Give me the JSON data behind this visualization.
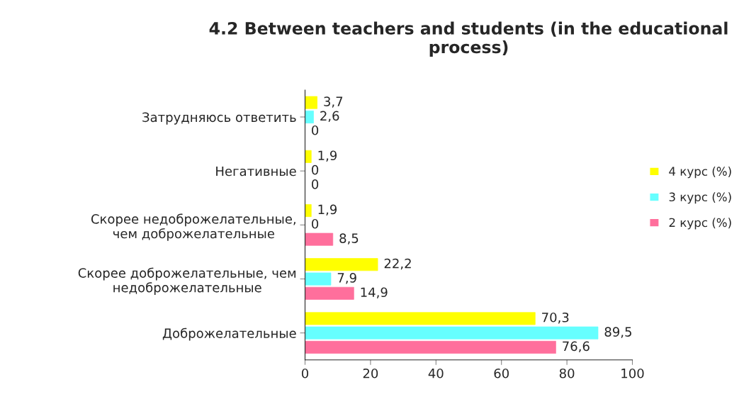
{
  "chart_data": {
    "type": "bar",
    "orientation": "horizontal",
    "title": "4.2 Between teachers and students (in the educational process)",
    "categories": [
      "Затрудняюсь ответить",
      "Негативные",
      "Скорее недоброжелательные,\nчем доброжелательные",
      "Скорее доброжелательные, чем\nнедоброжелательные",
      "Доброжелательные"
    ],
    "series": [
      {
        "name": "4 курс (%)",
        "color": "#ffff00",
        "values": [
          3.7,
          1.9,
          1.9,
          22.2,
          70.3
        ],
        "value_labels": [
          "3,7",
          "1,9",
          "1,9",
          "22,2",
          "70,3"
        ]
      },
      {
        "name": "3 курс (%)",
        "color": "#66ffff",
        "values": [
          2.6,
          0,
          0,
          7.9,
          89.5
        ],
        "value_labels": [
          "2,6",
          "0",
          "0",
          "7,9",
          "89,5"
        ]
      },
      {
        "name": "2 курс (%)",
        "color": "#ff6f9c",
        "values": [
          0,
          0,
          8.5,
          14.9,
          76.6
        ],
        "value_labels": [
          "0",
          "0",
          "8,5",
          "14,9",
          "76,6"
        ]
      }
    ],
    "xlim": [
      0,
      100
    ],
    "xticks": [
      0,
      20,
      40,
      60,
      80,
      100
    ],
    "grid": false,
    "legend": "right"
  }
}
